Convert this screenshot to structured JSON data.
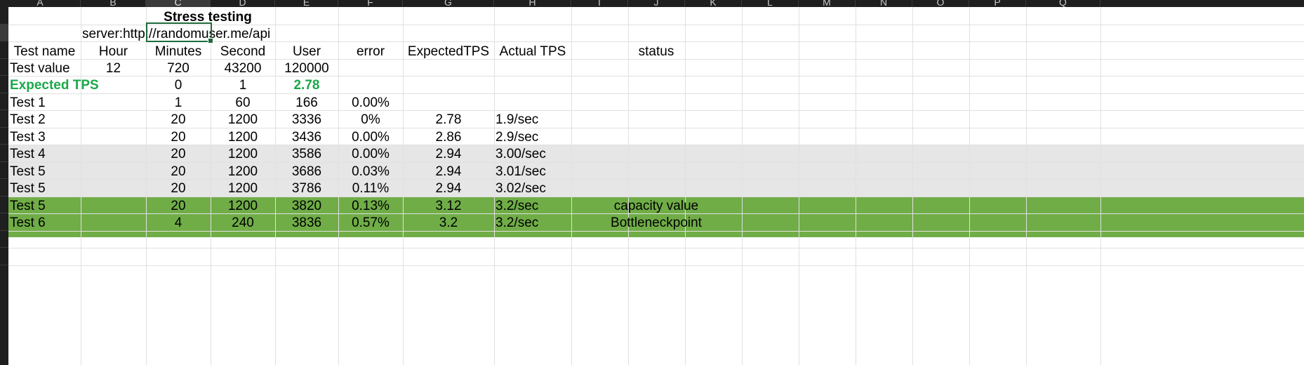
{
  "column_headers": [
    "A",
    "B",
    "C",
    "D",
    "E",
    "F",
    "G",
    "H",
    "I",
    "J",
    "K",
    "L",
    "M",
    "N",
    "O",
    "P",
    "Q"
  ],
  "selected_column": "C",
  "title": "Stress testing",
  "server_label": "server:http://randomuser.me/api",
  "headers": {
    "test_name": "Test name",
    "hour": "Hour",
    "minutes": "Minutes",
    "second": "Second",
    "user": "User",
    "error": "error",
    "expected_tps": "ExpectedTPS",
    "actual_tps": "Actual TPS",
    "status": "status"
  },
  "test_value_row": {
    "label": "Test value",
    "hour": "12",
    "minutes": "720",
    "second": "43200",
    "user": "120000"
  },
  "expected_tps_row": {
    "label": "Expected TPS",
    "minutes": "0",
    "second": "1",
    "user": "2.78"
  },
  "tests": [
    {
      "name": "Test 1",
      "minutes": "1",
      "second": "60",
      "user": "166",
      "error": "0.00%",
      "expected": "",
      "actual": "",
      "status": "",
      "highlight": "none"
    },
    {
      "name": "Test 2",
      "minutes": "20",
      "second": "1200",
      "user": "3336",
      "error": "0%",
      "expected": "2.78",
      "actual": "1.9/sec",
      "status": "",
      "highlight": "none"
    },
    {
      "name": "Test 3",
      "minutes": "20",
      "second": "1200",
      "user": "3436",
      "error": "0.00%",
      "expected": "2.86",
      "actual": "2.9/sec",
      "status": "",
      "highlight": "none"
    },
    {
      "name": "Test 4",
      "minutes": "20",
      "second": "1200",
      "user": "3586",
      "error": "0.00%",
      "expected": "2.94",
      "actual": "3.00/sec",
      "status": "",
      "highlight": "grey"
    },
    {
      "name": "Test 5",
      "minutes": "20",
      "second": "1200",
      "user": "3686",
      "error": "0.03%",
      "expected": "2.94",
      "actual": "3.01/sec",
      "status": "",
      "highlight": "grey"
    },
    {
      "name": "Test 5",
      "minutes": "20",
      "second": "1200",
      "user": "3786",
      "error": "0.11%",
      "expected": "2.94",
      "actual": "3.02/sec",
      "status": "",
      "highlight": "grey"
    },
    {
      "name": "Test 5",
      "minutes": "20",
      "second": "1200",
      "user": "3820",
      "error": "0.13%",
      "expected": "3.12",
      "actual": "3.2/sec",
      "status": "capacity value",
      "highlight": "green"
    },
    {
      "name": "Test 6",
      "minutes": "4",
      "second": "240",
      "user": "3836",
      "error": "0.57%",
      "expected": "3.2",
      "actual": "3.2/sec",
      "status": "Bottleneckpoint",
      "highlight": "green"
    }
  ],
  "colors": {
    "header_bar": "#1f1f1f",
    "grid_line": "#e0e0e0",
    "grey_fill": "#e6e6e6",
    "green_fill": "#70ad47",
    "green_text": "#1aa84a",
    "active_border": "#1e6b3a"
  }
}
